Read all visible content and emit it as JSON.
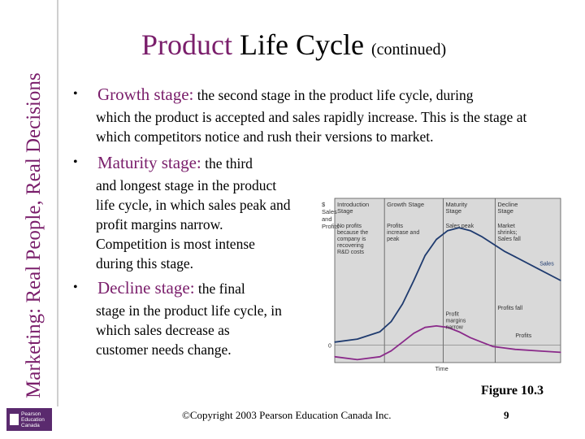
{
  "sidebar": {
    "title": "Marketing: Real People, Real Decisions"
  },
  "logo": {
    "text": "Pearson Education Canada"
  },
  "header": {
    "title_part1": "Product",
    "title_part2": "Life Cycle",
    "title_part3": "(continued)"
  },
  "bullets": [
    {
      "term": "Growth stage:",
      "line1": "the second stage in the product life cycle, during",
      "rest": "which the product is accepted and sales rapidly increase.  This is the stage at which competitors notice and rush their versions to market."
    },
    {
      "term": "Maturity stage:",
      "line1": "the third",
      "rest": "and longest stage in the product life cycle, in which sales peak and profit margins narrow.  Competition is most intense during this stage."
    },
    {
      "term": "Decline stage:",
      "line1": "the final",
      "rest": "stage in the product life cycle, in which sales decrease as customer needs change."
    }
  ],
  "figure": {
    "label": "Figure 10.3"
  },
  "footer": {
    "copyright": "©Copyright 2003 Pearson Education Canada Inc.",
    "page": "9"
  },
  "chart_data": {
    "type": "line",
    "ylabel": "$ Sales and Profits",
    "xlabel": "Time",
    "zero_label": "0",
    "stages": [
      {
        "name": "Introduction Stage",
        "note": "No profits because the company is recovering R&D costs"
      },
      {
        "name": "Growth Stage",
        "note": "Profits increase and peak"
      },
      {
        "name": "Maturity Stage",
        "note": "Sales peak"
      },
      {
        "name": "Decline Stage",
        "note": "Market shrinks; Sales fall"
      }
    ],
    "annotations": [
      "Profit margins narrow",
      "Profits fall"
    ],
    "x": [
      0,
      10,
      20,
      25,
      30,
      35,
      40,
      45,
      50,
      55,
      60,
      65,
      70,
      75,
      80,
      90,
      100
    ],
    "series": [
      {
        "name": "Sales",
        "color": "#1f3b6f",
        "values": [
          2,
          4,
          9,
          16,
          28,
          44,
          61,
          72,
          78,
          80,
          78,
          74,
          69,
          64,
          60,
          52,
          44
        ]
      },
      {
        "name": "Profits",
        "color": "#8a2a8a",
        "values": [
          -8,
          -10,
          -8,
          -4,
          2,
          8,
          12,
          13,
          12,
          9,
          5,
          2,
          -1,
          -2,
          -3,
          -4,
          -5
        ]
      }
    ],
    "grid": false
  }
}
